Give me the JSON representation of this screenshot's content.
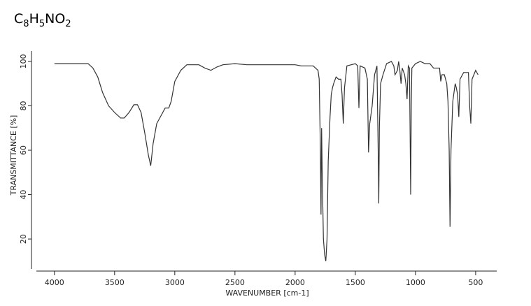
{
  "chart_data": {
    "type": "line",
    "title": "C8H5NO2",
    "x_label": "WAVENUMBER [cm-1]",
    "y_label": "TRANSMITTANCE [%]",
    "xlim": [
      4150,
      325
    ],
    "ylim": [
      6.5,
      104.7
    ],
    "xticks": [
      4000,
      3500,
      3000,
      2500,
      2000,
      1500,
      1000,
      500
    ],
    "yticks": [
      20,
      40,
      60,
      80,
      100
    ],
    "grid": false,
    "x": [
      4000,
      3720,
      3680,
      3640,
      3600,
      3550,
      3500,
      3450,
      3420,
      3380,
      3340,
      3310,
      3280,
      3250,
      3220,
      3200,
      3180,
      3150,
      3120,
      3080,
      3050,
      3030,
      3000,
      2950,
      2900,
      2800,
      2750,
      2700,
      2650,
      2600,
      2500,
      2400,
      2300,
      2200,
      2100,
      2000,
      1950,
      1850,
      1810,
      1800,
      1790,
      1785,
      1780,
      1775,
      1765,
      1755,
      1745,
      1735,
      1725,
      1710,
      1700,
      1690,
      1680,
      1660,
      1640,
      1620,
      1610,
      1600,
      1590,
      1570,
      1500,
      1480,
      1470,
      1460,
      1420,
      1400,
      1390,
      1380,
      1360,
      1340,
      1320,
      1310,
      1305,
      1300,
      1290,
      1270,
      1240,
      1200,
      1180,
      1170,
      1150,
      1140,
      1130,
      1120,
      1110,
      1090,
      1080,
      1070,
      1060,
      1050,
      1045,
      1040,
      1035,
      1030,
      1000,
      960,
      920,
      880,
      850,
      800,
      790,
      780,
      760,
      740,
      730,
      720,
      713,
      705,
      690,
      670,
      660,
      650,
      640,
      630,
      600,
      560,
      550,
      540,
      530,
      500,
      480
    ],
    "series": [
      {
        "name": "C8H5NO2",
        "color": "#333333",
        "values": [
          99,
          99,
          97,
          93,
          86,
          80,
          77,
          74.5,
          74.5,
          77,
          80.5,
          80.5,
          77,
          68,
          58,
          53,
          63,
          72,
          75,
          79,
          79,
          82,
          91,
          96,
          98.5,
          98.5,
          97,
          96,
          97.5,
          98.5,
          99,
          98.5,
          98.5,
          98.5,
          98.5,
          98.5,
          98,
          98,
          96,
          92,
          60,
          31,
          70,
          50,
          20,
          13,
          10,
          20,
          55,
          75,
          85,
          88,
          90,
          93,
          92,
          92,
          85,
          72,
          88,
          98,
          99,
          98,
          79,
          98,
          97,
          92,
          59,
          72,
          80,
          94,
          98,
          60,
          36,
          70,
          90,
          94,
          99,
          100,
          98,
          94,
          96,
          100,
          96,
          90,
          97,
          94,
          90,
          83,
          98,
          97,
          70,
          40,
          80,
          97,
          99,
          100,
          99,
          99,
          97,
          97,
          91,
          94,
          94,
          90,
          82,
          60,
          25.5,
          60,
          82,
          90,
          88,
          85,
          75,
          92,
          95,
          95,
          80,
          72,
          92,
          96,
          94
        ]
      }
    ]
  }
}
